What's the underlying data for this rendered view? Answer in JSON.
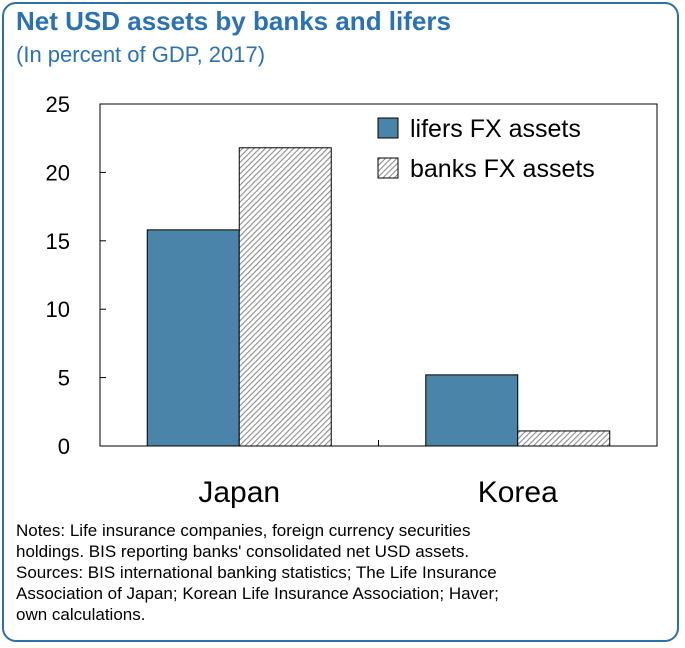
{
  "header": {
    "title": "Net USD assets by banks and lifers",
    "subtitle": "(In percent of GDP, 2017)"
  },
  "notes": {
    "lines": [
      "Notes: Life insurance companies, foreign currency securities",
      "holdings. BIS reporting banks' consolidated net USD assets.",
      "Sources: BIS international banking statistics; The Life Insurance",
      "Association of Japan; Korean Life Insurance Association; Haver;",
      "own calculations."
    ]
  },
  "colors": {
    "title": "#2b72b4",
    "lifers": "#4a85a9",
    "banks_hatch": "#9a9a9a",
    "frame": "#2f6fa8"
  },
  "chart_data": {
    "type": "bar",
    "categories": [
      "Japan",
      "Korea"
    ],
    "series": [
      {
        "name": "lifers FX assets",
        "values": [
          15.8,
          5.2
        ],
        "fill": "solid"
      },
      {
        "name": "banks FX assets",
        "values": [
          21.8,
          1.1
        ],
        "fill": "hatched"
      }
    ],
    "ylim": [
      0,
      25
    ],
    "yticks": [
      0,
      5,
      10,
      15,
      20,
      25
    ],
    "xlabel": "",
    "ylabel": "",
    "grid": false,
    "legend": "top-right"
  }
}
